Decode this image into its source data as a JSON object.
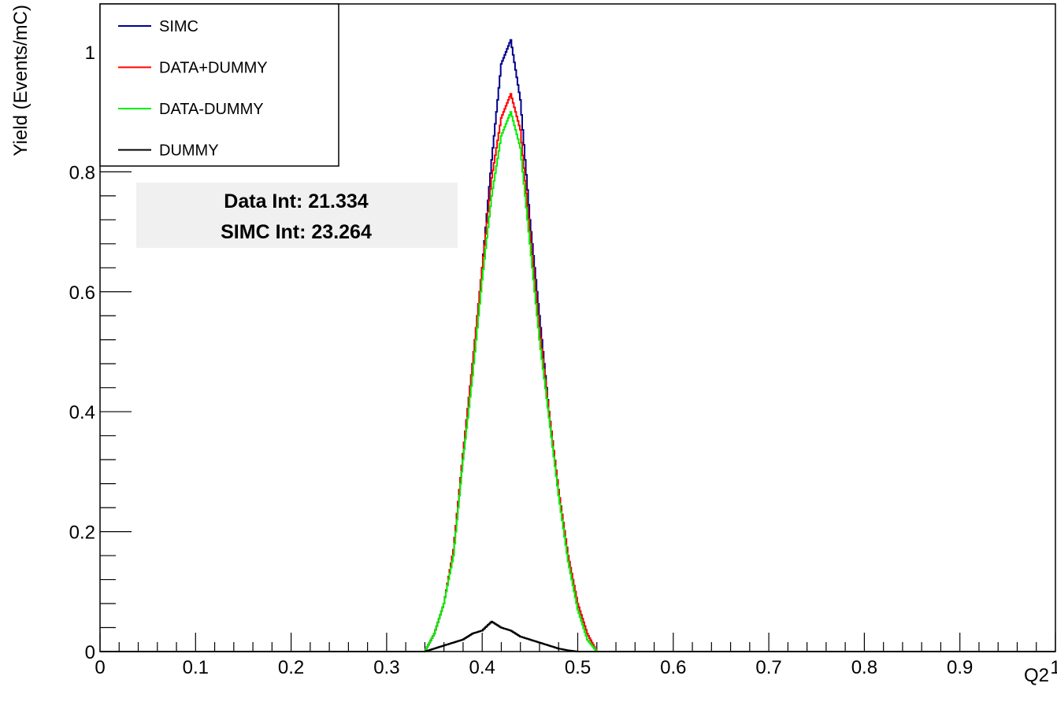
{
  "chart_data": {
    "type": "line",
    "xlabel": "Q2",
    "ylabel": "Yield (Events/mC)",
    "xlim": [
      0,
      1
    ],
    "ylim": [
      0,
      1.08
    ],
    "x_ticks": [
      "0",
      "0.1",
      "0.2",
      "0.3",
      "0.4",
      "0.5",
      "0.6",
      "0.7",
      "0.8",
      "0.9",
      "1"
    ],
    "y_ticks": [
      "0",
      "0.2",
      "0.4",
      "0.6",
      "0.8",
      "1"
    ],
    "legend_position": "top-left",
    "x": [
      0.34,
      0.35,
      0.36,
      0.37,
      0.38,
      0.39,
      0.4,
      0.41,
      0.42,
      0.43,
      0.44,
      0.45,
      0.46,
      0.47,
      0.48,
      0.49,
      0.5,
      0.51,
      0.52
    ],
    "series": [
      {
        "name": "SIMC",
        "color": "#00008b",
        "values": [
          0.0,
          0.03,
          0.08,
          0.17,
          0.33,
          0.48,
          0.64,
          0.82,
          0.98,
          1.02,
          0.92,
          0.72,
          0.56,
          0.4,
          0.27,
          0.16,
          0.08,
          0.03,
          0.0
        ]
      },
      {
        "name": "DATA+DUMMY",
        "color": "#ff0000",
        "values": [
          0.0,
          0.03,
          0.08,
          0.17,
          0.33,
          0.48,
          0.64,
          0.79,
          0.89,
          0.93,
          0.87,
          0.7,
          0.54,
          0.4,
          0.27,
          0.16,
          0.08,
          0.03,
          0.0
        ]
      },
      {
        "name": "DATA-DUMMY",
        "color": "#00ee00",
        "values": [
          0.0,
          0.03,
          0.08,
          0.16,
          0.32,
          0.46,
          0.62,
          0.76,
          0.86,
          0.9,
          0.84,
          0.68,
          0.52,
          0.39,
          0.26,
          0.15,
          0.07,
          0.02,
          0.0
        ]
      },
      {
        "name": "DUMMY",
        "color": "#000000",
        "values": [
          0.0,
          0.005,
          0.01,
          0.015,
          0.02,
          0.03,
          0.035,
          0.05,
          0.04,
          0.035,
          0.025,
          0.02,
          0.015,
          0.01,
          0.005,
          0.002,
          0.0,
          0.0,
          0.0
        ]
      }
    ],
    "annotations": [
      "Data Int: 21.334",
      "SIMC Int: 23.264"
    ]
  }
}
